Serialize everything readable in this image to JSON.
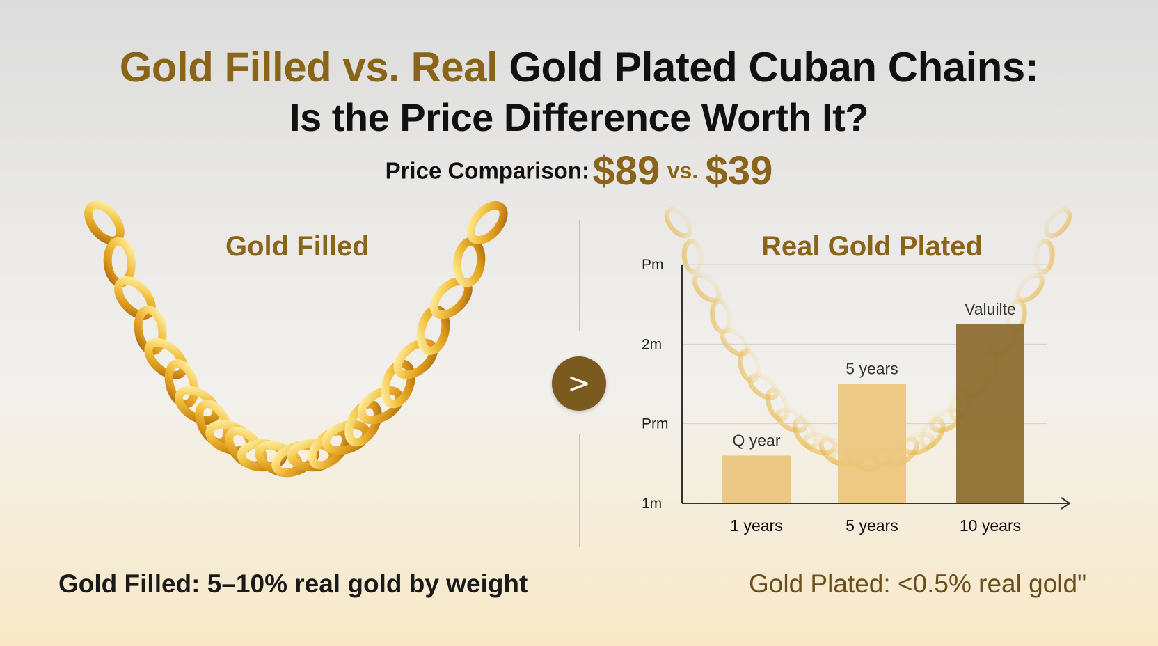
{
  "header": {
    "title_part1": "Gold Filled vs. Real",
    "title_part2": "Gold Plated Cuban Chains:",
    "title_line2": "Is the Price Difference Worth It?"
  },
  "price": {
    "label": "Price Comparison:",
    "gold_filled_price": "$89",
    "vs": "vs.",
    "gold_plated_price": "$39"
  },
  "left_panel": {
    "title": "Gold Filled",
    "chain_icon": "gold-cuban-chain"
  },
  "right_panel": {
    "title": "Real Gold Plated"
  },
  "compare_button": {
    "label": ">"
  },
  "chart_data": {
    "type": "bar",
    "categories": [
      "1 years",
      "5 years",
      "10 years"
    ],
    "values": [
      1.6,
      2.5,
      3.25
    ],
    "bar_labels": [
      "Q year",
      "5 years",
      "Valuilte"
    ],
    "ytick_labels": [
      "1m",
      "Prm",
      "2m",
      "Pm"
    ],
    "ytick_values": [
      1,
      2,
      3,
      4
    ],
    "ylim": [
      1,
      4
    ],
    "grid": true,
    "bar_colors": [
      "#e9c57c",
      "#ecc67c",
      "#8b6a2b"
    ]
  },
  "footer": {
    "left": "Gold Filled: 5–10% real gold by weight",
    "right": "Gold Plated: <0.5% real gold\""
  },
  "colors": {
    "gold_accent": "#8a6418",
    "chain_gold": "#e8b23a",
    "button_brown": "#7a5a1f"
  }
}
